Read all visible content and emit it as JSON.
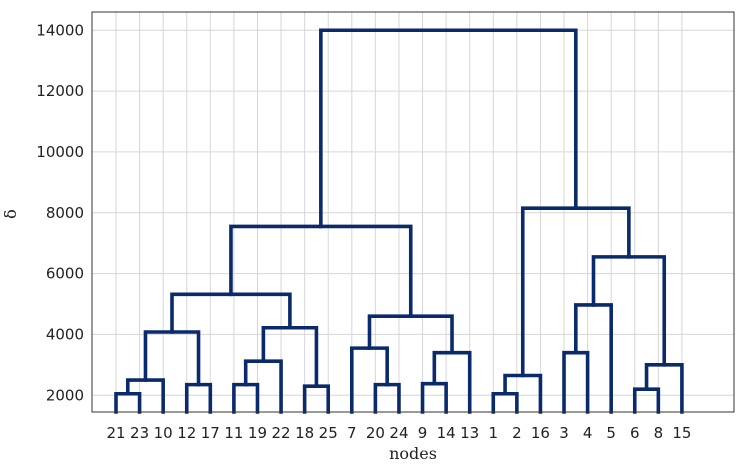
{
  "chart_data": {
    "type": "dendrogram",
    "xlabel": "nodes",
    "ylabel": "δ",
    "ylim": [
      1450,
      14600
    ],
    "yticks": [
      2000,
      4000,
      6000,
      8000,
      10000,
      12000,
      14000
    ],
    "grid": true,
    "color": "#0b2a6b",
    "leaves": [
      "21",
      "23",
      "10",
      "12",
      "17",
      "11",
      "19",
      "22",
      "18",
      "25",
      "7",
      "20",
      "24",
      "9",
      "14",
      "13",
      "1",
      "2",
      "16",
      "3",
      "4",
      "5",
      "6",
      "8",
      "15"
    ],
    "merges": [
      {
        "a": "21",
        "b": "23",
        "height": 2050
      },
      {
        "a": "21,23",
        "b": "10",
        "height": 2500
      },
      {
        "a": "12",
        "b": "17",
        "height": 2350
      },
      {
        "a": "21,23,10",
        "b": "12,17",
        "height": 4080
      },
      {
        "a": "11",
        "b": "19",
        "height": 2350
      },
      {
        "a": "11,19",
        "b": "22",
        "height": 3120
      },
      {
        "a": "18",
        "b": "25",
        "height": 2300
      },
      {
        "a": "11,19,22",
        "b": "18,25",
        "height": 4220
      },
      {
        "a": "21,23,10,12,17",
        "b": "11,19,22,18,25",
        "height": 5320
      },
      {
        "a": "20",
        "b": "24",
        "height": 2350
      },
      {
        "a": "7",
        "b": "20,24",
        "height": 3550
      },
      {
        "a": "9",
        "b": "14",
        "height": 2380
      },
      {
        "a": "9,14",
        "b": "13",
        "height": 3400
      },
      {
        "a": "7,20,24",
        "b": "9,14,13",
        "height": 4600
      },
      {
        "a": "21,...,25",
        "b": "7,...,13",
        "height": 7550
      },
      {
        "a": "1",
        "b": "2",
        "height": 2050
      },
      {
        "a": "1,2",
        "b": "16",
        "height": 2650
      },
      {
        "a": "3",
        "b": "4",
        "height": 3400
      },
      {
        "a": "3,4",
        "b": "5",
        "height": 4970
      },
      {
        "a": "6",
        "b": "8",
        "height": 2200
      },
      {
        "a": "6,8",
        "b": "15",
        "height": 3000
      },
      {
        "a": "3,4,5",
        "b": "6,8,15",
        "height": 6550
      },
      {
        "a": "1,2,16",
        "b": "3,4,5,6,8,15",
        "height": 8150
      },
      {
        "a": "left",
        "b": "right",
        "height": 14000
      }
    ]
  }
}
